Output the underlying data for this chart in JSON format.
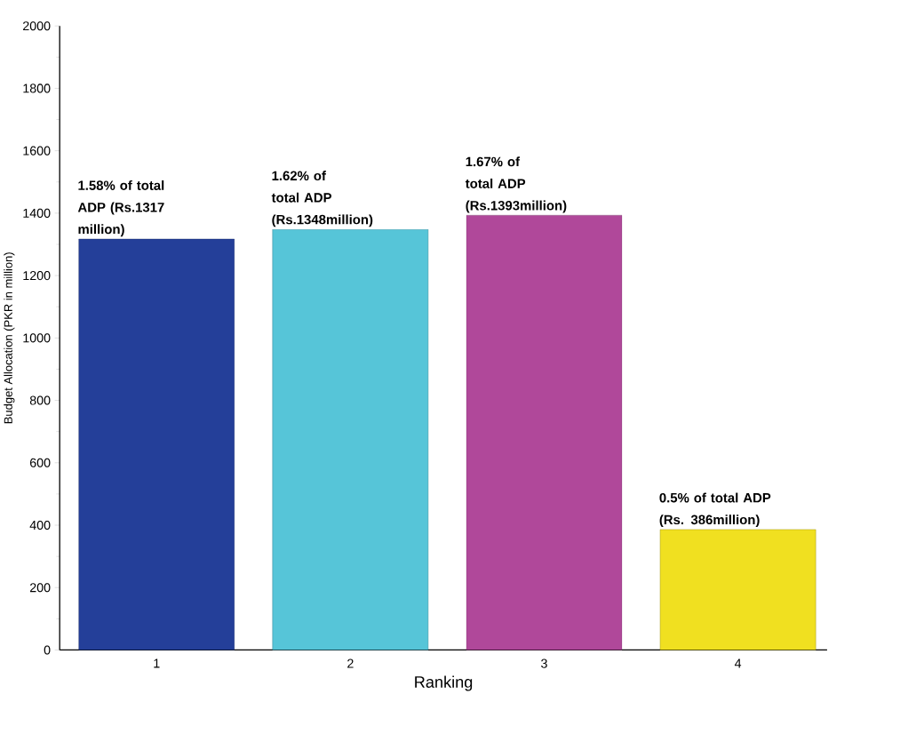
{
  "chart_data": {
    "type": "bar",
    "xlabel": "Ranking",
    "ylabel": "Budget Allocation (PKR in million)",
    "categories": [
      "1",
      "2",
      "3",
      "4"
    ],
    "values": [
      1317,
      1348,
      1393,
      386
    ],
    "colors": [
      "#243f99",
      "#56c5d8",
      "#b0489a",
      "#f0e020"
    ],
    "ylim": [
      0,
      2000
    ],
    "yticks": [
      0,
      200,
      400,
      600,
      800,
      1000,
      1200,
      1400,
      1600,
      1800,
      2000
    ],
    "annotations": [
      {
        "text": "1.58% of total ADP (Rs.1317 million)",
        "x": "1",
        "y": 1317
      },
      {
        "text": "1.62% of total ADP (Rs.1348million)",
        "x": "2",
        "y": 1348
      },
      {
        "text": "1.67% of total ADP (Rs.1393million)",
        "x": "3",
        "y": 1393
      },
      {
        "text": "0.5% of total ADP (Rs. 386million)",
        "x": "4",
        "y": 386
      }
    ],
    "grid": false
  }
}
